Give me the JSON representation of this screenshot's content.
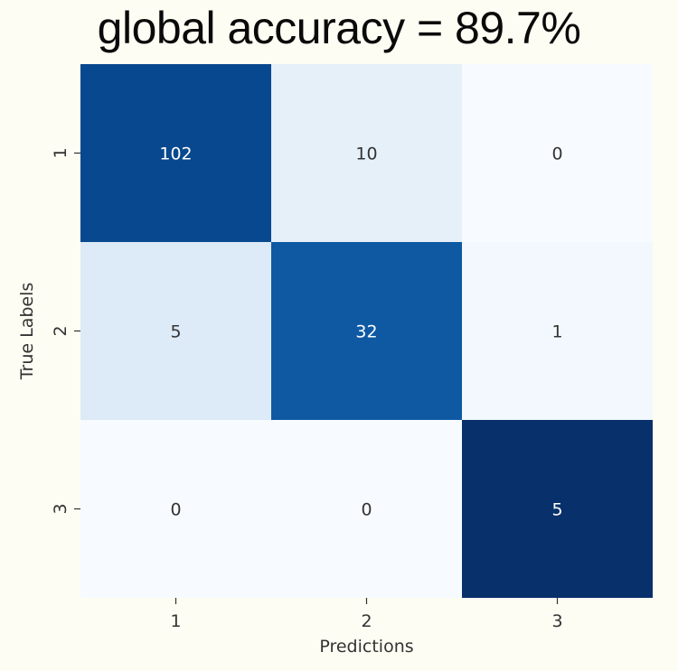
{
  "title": "global accuracy = 89.7%",
  "chart_data": {
    "type": "heatmap",
    "title": "global accuracy = 89.7%",
    "xlabel": "Predictions",
    "ylabel": "True Labels",
    "x_categories": [
      "1",
      "2",
      "3"
    ],
    "y_categories": [
      "1",
      "2",
      "3"
    ],
    "values": [
      [
        102,
        10,
        0
      ],
      [
        5,
        32,
        1
      ],
      [
        0,
        0,
        5
      ]
    ],
    "colormap": "Blues (row-normalized)",
    "colors": {
      "low": "#f7fbff",
      "high": "#08306b",
      "text_dark": "#333333",
      "text_light": "#ffffff"
    },
    "grid": false,
    "colorbar": false
  }
}
